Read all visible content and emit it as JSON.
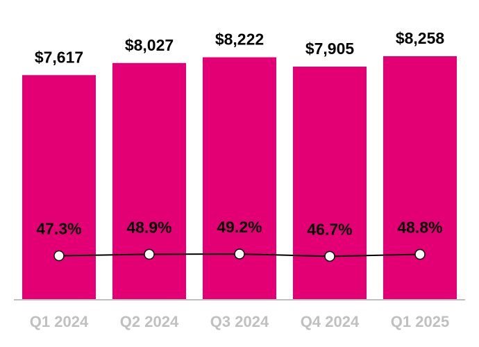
{
  "chart_data": {
    "type": "bar",
    "categories": [
      "Q1 2024",
      "Q2 2024",
      "Q3 2024",
      "Q4 2024",
      "Q1 2025"
    ],
    "series": [
      {
        "type": "bar",
        "color": "#e20074",
        "values": [
          7617,
          8027,
          8222,
          7905,
          8258
        ],
        "value_labels": [
          "$7,617",
          "$8,027",
          "$8,222",
          "$7,905",
          "$8,258"
        ]
      },
      {
        "type": "line",
        "color": "#000000",
        "values": [
          47.3,
          48.9,
          49.2,
          46.7,
          48.8
        ],
        "value_labels": [
          "47.3%",
          "48.9%",
          "49.2%",
          "46.7%",
          "48.8%"
        ]
      }
    ]
  }
}
